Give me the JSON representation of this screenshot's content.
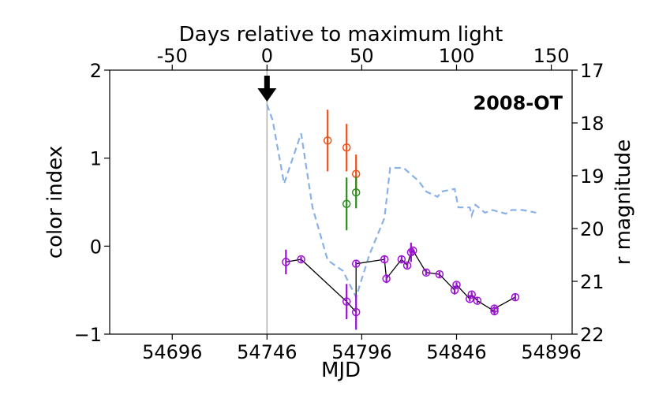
{
  "chart_data": {
    "type": "scatter",
    "annotation": "2008-OT",
    "xlabel": "MJD",
    "ylabel": "color index",
    "ylabel_right": "r magnitude",
    "xlabel_top": "Days relative to maximum light",
    "xlim": [
      54663,
      54907
    ],
    "ylim": [
      -1,
      2
    ],
    "ylim_right": [
      22,
      17
    ],
    "max_light_mjd": 54746,
    "x_ticks": [
      54696,
      54746,
      54796,
      54846,
      54896
    ],
    "x_tick_labels": [
      "54696",
      "54746",
      "54796",
      "54846",
      "54896"
    ],
    "y_ticks": [
      -1,
      0,
      1,
      2
    ],
    "y_tick_labels": [
      "−1",
      "0",
      "1",
      "2"
    ],
    "y2_ticks": [
      17,
      18,
      19,
      20,
      21,
      22
    ],
    "y2_tick_labels": [
      "17",
      "18",
      "19",
      "20",
      "21",
      "22"
    ],
    "top_ticks": [
      -50,
      0,
      50,
      100,
      150
    ],
    "top_tick_labels": [
      "-50",
      "0",
      "50",
      "100",
      "150"
    ],
    "colors": {
      "orange": "#e8521b",
      "green": "#2e8b22",
      "purple": "#9b10d4",
      "line": "#000000",
      "curve": "#8ab1e6",
      "vline": "#b0b0b0"
    },
    "series": [
      {
        "name": "orange color index",
        "color": "orange",
        "points": [
          {
            "x": 54778,
            "y": 1.2,
            "err": 0.35
          },
          {
            "x": 54788,
            "y": 1.12,
            "err": 0.27
          },
          {
            "x": 54793,
            "y": 0.82,
            "err": 0.22
          }
        ]
      },
      {
        "name": "green color index",
        "color": "green",
        "points": [
          {
            "x": 54788,
            "y": 0.48,
            "err": 0.3
          },
          {
            "x": 54793,
            "y": 0.61,
            "err": 0.18
          }
        ]
      },
      {
        "name": "purple color index",
        "color": "purple",
        "connected": true,
        "points": [
          {
            "x": 54756,
            "y": -0.18,
            "err": 0.14
          },
          {
            "x": 54764,
            "y": -0.15,
            "err": 0.03
          },
          {
            "x": 54788,
            "y": -0.63,
            "err": 0.2
          },
          {
            "x": 54793,
            "y": -0.75,
            "err": 0.2
          },
          {
            "x": 54793,
            "y": -0.2,
            "err": 0.03
          },
          {
            "x": 54808,
            "y": -0.15,
            "err": 0.04
          },
          {
            "x": 54809,
            "y": -0.37,
            "err": 0.05
          },
          {
            "x": 54817,
            "y": -0.15,
            "err": 0.04
          },
          {
            "x": 54820,
            "y": -0.22,
            "err": 0.03
          },
          {
            "x": 54822,
            "y": -0.07,
            "err": 0.11
          },
          {
            "x": 54823,
            "y": -0.05,
            "err": 0.03
          },
          {
            "x": 54830,
            "y": -0.3,
            "err": 0.03
          },
          {
            "x": 54837,
            "y": -0.32,
            "err": 0.03
          },
          {
            "x": 54845,
            "y": -0.5,
            "err": 0.05
          },
          {
            "x": 54846,
            "y": -0.44,
            "err": 0.03
          },
          {
            "x": 54853,
            "y": -0.6,
            "err": 0.03
          },
          {
            "x": 54854,
            "y": -0.55,
            "err": 0.03
          },
          {
            "x": 54857,
            "y": -0.62,
            "err": 0.03
          },
          {
            "x": 54866,
            "y": -0.74,
            "err": 0.04
          },
          {
            "x": 54866,
            "y": -0.71,
            "err": 0.03
          },
          {
            "x": 54877,
            "y": -0.58,
            "err": 0.04
          }
        ]
      }
    ],
    "r_magnitude_curve": [
      {
        "x": 54746,
        "r": 17.65
      },
      {
        "x": 54749,
        "r": 17.95
      },
      {
        "x": 54755,
        "r": 19.15
      },
      {
        "x": 54764,
        "r": 18.2
      },
      {
        "x": 54770,
        "r": 19.6
      },
      {
        "x": 54778,
        "r": 20.6
      },
      {
        "x": 54786,
        "r": 20.8
      },
      {
        "x": 54793,
        "r": 21.3
      },
      {
        "x": 54800,
        "r": 20.5
      },
      {
        "x": 54808,
        "r": 19.8
      },
      {
        "x": 54811,
        "r": 18.85
      },
      {
        "x": 54818,
        "r": 18.85
      },
      {
        "x": 54826,
        "r": 19.1
      },
      {
        "x": 54830,
        "r": 19.3
      },
      {
        "x": 54836,
        "r": 19.4
      },
      {
        "x": 54838,
        "r": 19.3
      },
      {
        "x": 54845,
        "r": 19.25
      },
      {
        "x": 54847,
        "r": 19.6
      },
      {
        "x": 54853,
        "r": 19.6
      },
      {
        "x": 54854,
        "r": 19.75
      },
      {
        "x": 54856,
        "r": 19.55
      },
      {
        "x": 54861,
        "r": 19.7
      },
      {
        "x": 54865,
        "r": 19.65
      },
      {
        "x": 54872,
        "r": 19.72
      },
      {
        "x": 54875,
        "r": 19.65
      },
      {
        "x": 54881,
        "r": 19.65
      },
      {
        "x": 54888,
        "r": 19.7
      }
    ]
  }
}
